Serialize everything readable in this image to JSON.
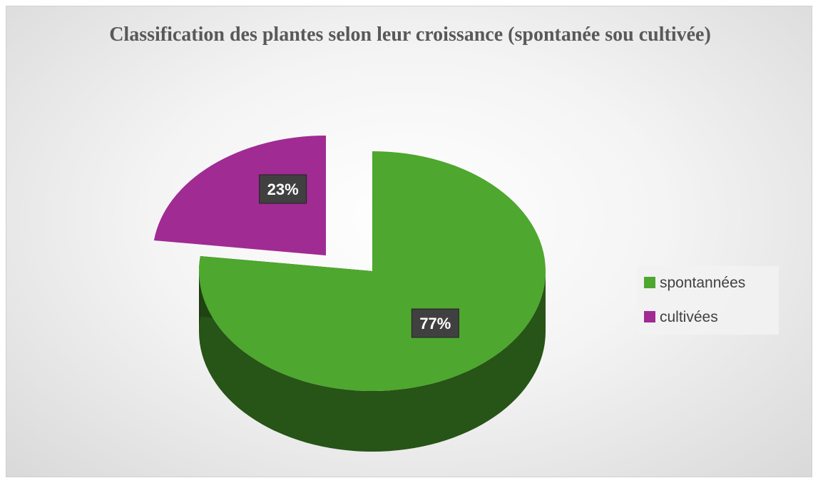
{
  "chart_data": {
    "type": "pie3d",
    "title": "Classification des plantes selon leur croissance (spontanée sou cultivée)",
    "categories": [
      "spontannées",
      "cultivées"
    ],
    "values": [
      77,
      23
    ],
    "value_labels": [
      "77%",
      "23%"
    ],
    "colors": [
      "#4ea72e",
      "#a02b93"
    ],
    "legend": "right"
  }
}
